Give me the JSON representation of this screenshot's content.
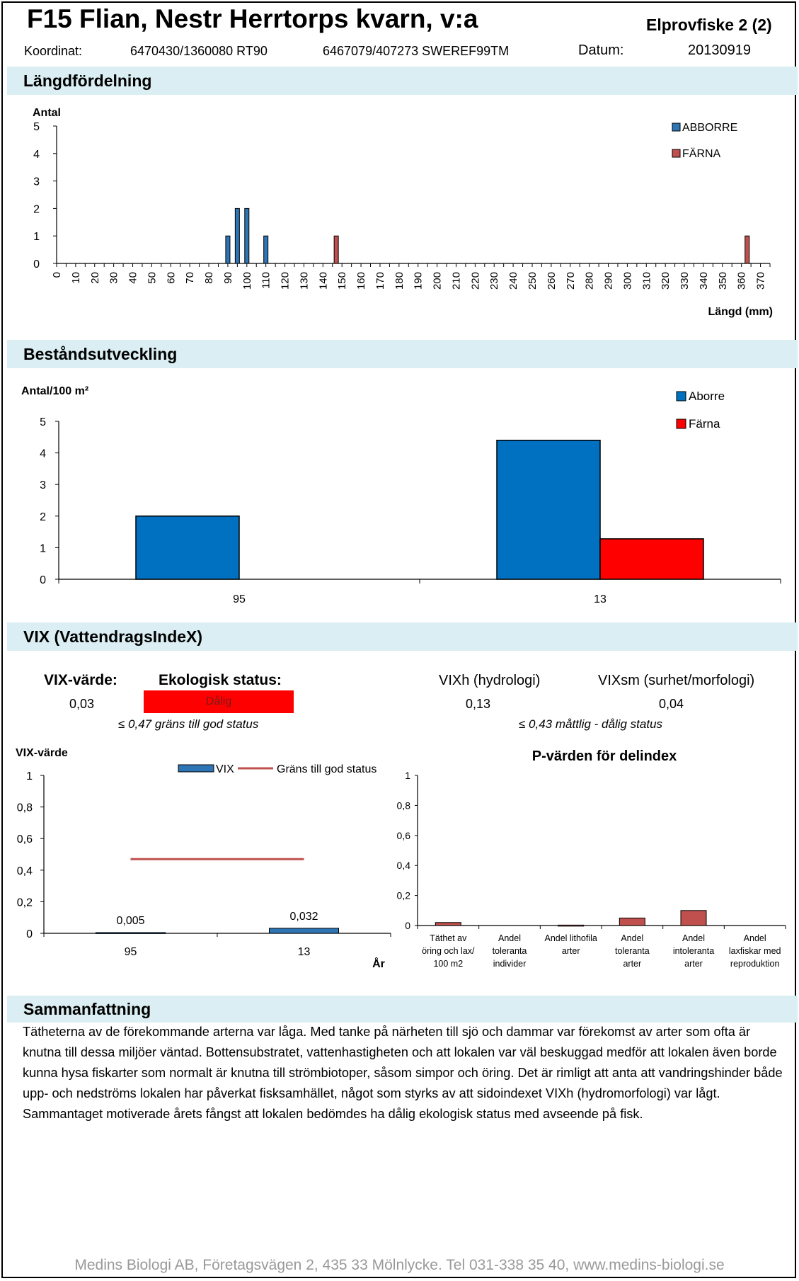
{
  "header": {
    "title": "F15 Flian, Nestr Herrtorps kvarn, v:a",
    "sheet": "Elprovfiske 2 (2)",
    "coord_label": "Koordinat:",
    "coord_rt90": "6470430/1360080 RT90",
    "coord_sweref": "6467079/407273 SWEREF99TM",
    "date_label": "Datum:",
    "date": "20130919"
  },
  "sections": {
    "length": "Längdfördelning",
    "stock": "Beståndsutveckling",
    "vix": "VIX (VattendragsIndeX)",
    "summary": "Sammanfattning"
  },
  "colors": {
    "abborre": "#2e75b6",
    "farna": "#c0504d",
    "aborre_stock": "#0070c0",
    "farna_stock": "#ff0000",
    "band": "#daeef3",
    "status_bad": "#ff0000"
  },
  "vix_info": {
    "vix_label": "VIX-värde:",
    "status_label": "Ekologisk status:",
    "vix_value": "0,03",
    "status_value": "Dålig",
    "vix_note": "≤ 0,47 gräns till god status",
    "vixh_label": "VIXh (hydrologi)",
    "vixsm_label": "VIXsm (surhet/morfologi)",
    "vixh_value": "0,13",
    "vixsm_value": "0,04",
    "sub_note": "≤ 0,43 måttlig - dålig status"
  },
  "summary_text": "Tätheterna av de förekommande arterna var låga. Med tanke på närheten till sjö och dammar var förekomst av arter som ofta är knutna till dessa miljöer väntad. Bottensubstratet, vattenhastigheten och att lokalen var väl beskuggad medför att lokalen även borde kunna hysa fiskarter som normalt är knutna till strömbiotoper, såsom simpor och öring. Det är rimligt att anta att vandringshinder både upp- och nedströms lokalen har påverkat fisksamhället, något som styrks av att sidoindexet VIXh (hydromorfologi) var lågt. Sammantaget motiverade årets fångst att lokalen bedömdes ha dålig ekologisk status med avseende på fisk.",
  "footer": "Medins Biologi AB, Företagsvägen 2, 435 33 Mölnlycke. Tel 031-338 35 40, www.medins-biologi.se",
  "chart_data": [
    {
      "type": "bar",
      "ylabel": "Antal",
      "xlabel": "Längd (mm)",
      "ylim": [
        0,
        5
      ],
      "yticks": [
        "0",
        "1",
        "2",
        "3",
        "4",
        "5"
      ],
      "xlim": [
        0,
        375
      ],
      "xticks": [
        0,
        10,
        20,
        30,
        40,
        50,
        60,
        70,
        80,
        90,
        100,
        110,
        120,
        130,
        140,
        150,
        160,
        170,
        180,
        190,
        200,
        210,
        220,
        230,
        240,
        250,
        260,
        270,
        280,
        290,
        300,
        310,
        320,
        330,
        340,
        350,
        360,
        370
      ],
      "legend_position": "top-right",
      "series": [
        {
          "name": "ABBORRE",
          "points": [
            {
              "x": 90,
              "y": 1
            },
            {
              "x": 95,
              "y": 2
            },
            {
              "x": 100,
              "y": 2
            },
            {
              "x": 110,
              "y": 1
            }
          ]
        },
        {
          "name": "FÄRNA",
          "points": [
            {
              "x": 147,
              "y": 1
            },
            {
              "x": 363,
              "y": 1
            }
          ]
        }
      ]
    },
    {
      "type": "bar",
      "ylabel": "Antal/100 m²",
      "ylim": [
        0,
        5
      ],
      "yticks": [
        "0",
        "1",
        "2",
        "3",
        "4",
        "5"
      ],
      "categories": [
        "95",
        "13"
      ],
      "legend_position": "top-right",
      "series": [
        {
          "name": "Aborre",
          "values": [
            2.0,
            4.4
          ]
        },
        {
          "name": "Färna",
          "values": [
            0,
            1.28
          ]
        }
      ]
    },
    {
      "type": "bar",
      "ylabel": "VIX-värde",
      "xlabel": "År",
      "ylim": [
        0,
        1
      ],
      "yticks": [
        "0",
        "0,2",
        "0,4",
        "0,6",
        "0,8",
        "1"
      ],
      "categories": [
        "95",
        "13"
      ],
      "legend_position": "top",
      "series": [
        {
          "name": "VIX",
          "values": [
            0.005,
            0.032
          ],
          "labels": [
            "0,005",
            "0,032"
          ]
        },
        {
          "name": "Gräns till god status",
          "kind": "line",
          "values": [
            0.47,
            0.47
          ]
        }
      ]
    },
    {
      "type": "bar",
      "title": "P-värden för delindex",
      "ylim": [
        0,
        1
      ],
      "yticks": [
        "0",
        "0,2",
        "0,4",
        "0,6",
        "0,8",
        "1"
      ],
      "categories": [
        [
          "Täthet av",
          "öring och lax/",
          "100 m2"
        ],
        [
          "Andel",
          "toleranta",
          "individer"
        ],
        [
          "Andel lithofila",
          "arter"
        ],
        [
          "Andel",
          "toleranta",
          "arter"
        ],
        [
          "Andel",
          "intoleranta",
          "arter"
        ],
        [
          "Andel",
          "laxfiskar med",
          "reproduktion"
        ]
      ],
      "values": [
        0.02,
        0,
        0.003,
        0.05,
        0.1,
        0
      ]
    }
  ]
}
